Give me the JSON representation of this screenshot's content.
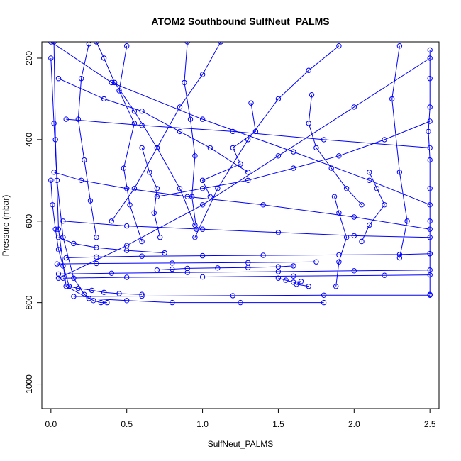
{
  "chart_data": {
    "type": "line",
    "title": "ATOM2 Southbound SulfNeut_PALMS",
    "xlabel": "SulfNeut_PALMS",
    "ylabel": "Pressure (mbar)",
    "xlim": [
      -0.06,
      2.56
    ],
    "ylim": [
      1060,
      160
    ],
    "y_reversed": true,
    "x_ticks": [
      {
        "value": 0.0,
        "label": "0.0"
      },
      {
        "value": 0.5,
        "label": "0.5"
      },
      {
        "value": 1.0,
        "label": "1.0"
      },
      {
        "value": 1.5,
        "label": "1.5"
      },
      {
        "value": 2.0,
        "label": "2.0"
      },
      {
        "value": 2.5,
        "label": "2.5"
      }
    ],
    "y_ticks": [
      {
        "value": 200,
        "label": "200"
      },
      {
        "value": 400,
        "label": "400"
      },
      {
        "value": 600,
        "label": "600"
      },
      {
        "value": 800,
        "label": "800"
      },
      {
        "value": 1000,
        "label": "1000"
      }
    ],
    "grid": false,
    "legend": "none",
    "color": "#0000ff",
    "marker": "open-circle",
    "series": [
      {
        "x": [
          0.02,
          0.03,
          0.05,
          0.1,
          0.25,
          0.5,
          0.8,
          1.25,
          1.8
        ],
        "y": [
          160,
          400,
          620,
          760,
          790,
          795,
          800,
          800,
          800
        ]
      },
      {
        "x": [
          0.0,
          0.02,
          0.04,
          0.08,
          0.15,
          0.22,
          0.28,
          0.33,
          0.37
        ],
        "y": [
          200,
          360,
          500,
          640,
          740,
          780,
          795,
          800,
          800
        ]
      },
      {
        "x": [
          2.5,
          2.5,
          2.5,
          2.49,
          2.5,
          2.5,
          2.5,
          2.5,
          2.5
        ],
        "y": [
          180,
          250,
          320,
          380,
          450,
          520,
          600,
          680,
          780
        ]
      },
      {
        "x": [
          0.1,
          0.3,
          0.6,
          1.0,
          1.4,
          1.9,
          2.3,
          2.5
        ],
        "y": [
          690,
          688,
          686,
          685,
          684,
          683,
          682,
          680
        ]
      },
      {
        "x": [
          0.05,
          0.4,
          0.9,
          1.5,
          2.0,
          2.5
        ],
        "y": [
          730,
          728,
          726,
          724,
          722,
          720
        ]
      },
      {
        "x": [
          0.08,
          0.5,
          1.0,
          1.6,
          2.2,
          2.5
        ],
        "y": [
          740,
          738,
          737,
          735,
          733,
          732
        ]
      },
      {
        "x": [
          0.15,
          0.6,
          1.2,
          1.8,
          2.5
        ],
        "y": [
          785,
          784,
          783,
          782,
          782
        ]
      },
      {
        "x": [
          0.04,
          0.3,
          0.8,
          1.3,
          1.75
        ],
        "y": [
          705,
          704,
          703,
          702,
          700
        ]
      },
      {
        "x": [
          0.0,
          0.4,
          1.0,
          1.6,
          2.1,
          2.5
        ],
        "y": [
          160,
          260,
          350,
          430,
          500,
          560
        ]
      },
      {
        "x": [
          2.5,
          2.0,
          1.5,
          1.0,
          0.5,
          0.05
        ],
        "y": [
          200,
          320,
          440,
          560,
          660,
          740
        ]
      },
      {
        "x": [
          0.05,
          0.35,
          0.6,
          0.85,
          1.05,
          1.3
        ],
        "y": [
          250,
          300,
          330,
          380,
          420,
          480
        ]
      },
      {
        "x": [
          1.32,
          1.35,
          1.2,
          1.25,
          1.0,
          1.05
        ],
        "y": [
          310,
          380,
          420,
          460,
          500,
          540
        ]
      },
      {
        "x": [
          0.25,
          0.2,
          0.18,
          0.22,
          0.26,
          0.3
        ],
        "y": [
          165,
          250,
          350,
          450,
          550,
          640
        ]
      },
      {
        "x": [
          0.5,
          0.45,
          0.55,
          0.48,
          0.52,
          0.6
        ],
        "y": [
          170,
          280,
          360,
          470,
          560,
          650
        ]
      },
      {
        "x": [
          0.1,
          0.6,
          1.2,
          1.8,
          2.5
        ],
        "y": [
          350,
          365,
          380,
          400,
          420
        ]
      },
      {
        "x": [
          1.72,
          1.7,
          1.75,
          1.85,
          1.95,
          2.05
        ],
        "y": [
          290,
          360,
          420,
          470,
          520,
          560
        ]
      },
      {
        "x": [
          2.5,
          2.2,
          1.9,
          1.6,
          1.3,
          1.0,
          0.7
        ],
        "y": [
          355,
          400,
          440,
          470,
          500,
          520,
          540
        ]
      },
      {
        "x": [
          0.02,
          0.2,
          0.5,
          0.9,
          1.4,
          2.0,
          2.5
        ],
        "y": [
          480,
          500,
          520,
          540,
          560,
          590,
          620
        ]
      },
      {
        "x": [
          0.0,
          0.01,
          0.03,
          0.05,
          0.08,
          0.12
        ],
        "y": [
          500,
          560,
          620,
          670,
          710,
          760
        ]
      },
      {
        "x": [
          0.9,
          0.88,
          0.92,
          0.95,
          0.93,
          0.96
        ],
        "y": [
          160,
          260,
          350,
          440,
          540,
          620
        ]
      },
      {
        "x": [
          2.3,
          2.25,
          2.3,
          2.35,
          2.3
        ],
        "y": [
          170,
          300,
          480,
          600,
          690
        ]
      },
      {
        "x": [
          0.7,
          0.8,
          0.9,
          1.1,
          1.3,
          1.5,
          1.6
        ],
        "y": [
          720,
          718,
          716,
          715,
          714,
          712,
          710
        ]
      },
      {
        "x": [
          0.12,
          0.18,
          0.27,
          0.35,
          0.45,
          0.6
        ],
        "y": [
          760,
          765,
          770,
          775,
          778,
          780
        ]
      },
      {
        "x": [
          1.9,
          1.7,
          1.5,
          1.3,
          1.1,
          0.95
        ],
        "y": [
          170,
          230,
          300,
          400,
          520,
          640
        ]
      },
      {
        "x": [
          0.3,
          0.35,
          0.42,
          0.55,
          0.7,
          0.85,
          0.95
        ],
        "y": [
          160,
          200,
          260,
          330,
          420,
          520,
          610
        ]
      },
      {
        "x": [
          1.5,
          1.55,
          1.6,
          1.65,
          1.62,
          1.7
        ],
        "y": [
          740,
          745,
          750,
          748,
          755,
          760
        ]
      },
      {
        "x": [
          0.05,
          0.15,
          0.3,
          0.5,
          0.75
        ],
        "y": [
          640,
          655,
          665,
          672,
          678
        ]
      },
      {
        "x": [
          2.1,
          2.15,
          2.2,
          2.1,
          2.05
        ],
        "y": [
          480,
          520,
          560,
          610,
          650
        ]
      },
      {
        "x": [
          0.6,
          0.65,
          0.7,
          0.68,
          0.72
        ],
        "y": [
          420,
          480,
          520,
          580,
          640
        ]
      },
      {
        "x": [
          1.12,
          1.0,
          0.85,
          0.7,
          0.55,
          0.4
        ],
        "y": [
          160,
          240,
          320,
          420,
          520,
          600
        ]
      },
      {
        "x": [
          0.08,
          0.5,
          1.0,
          1.5,
          2.0,
          2.5
        ],
        "y": [
          600,
          612,
          620,
          628,
          636,
          640
        ]
      },
      {
        "x": [
          1.87,
          1.9,
          1.95,
          1.9,
          1.88
        ],
        "y": [
          540,
          580,
          640,
          700,
          760
        ]
      }
    ]
  }
}
